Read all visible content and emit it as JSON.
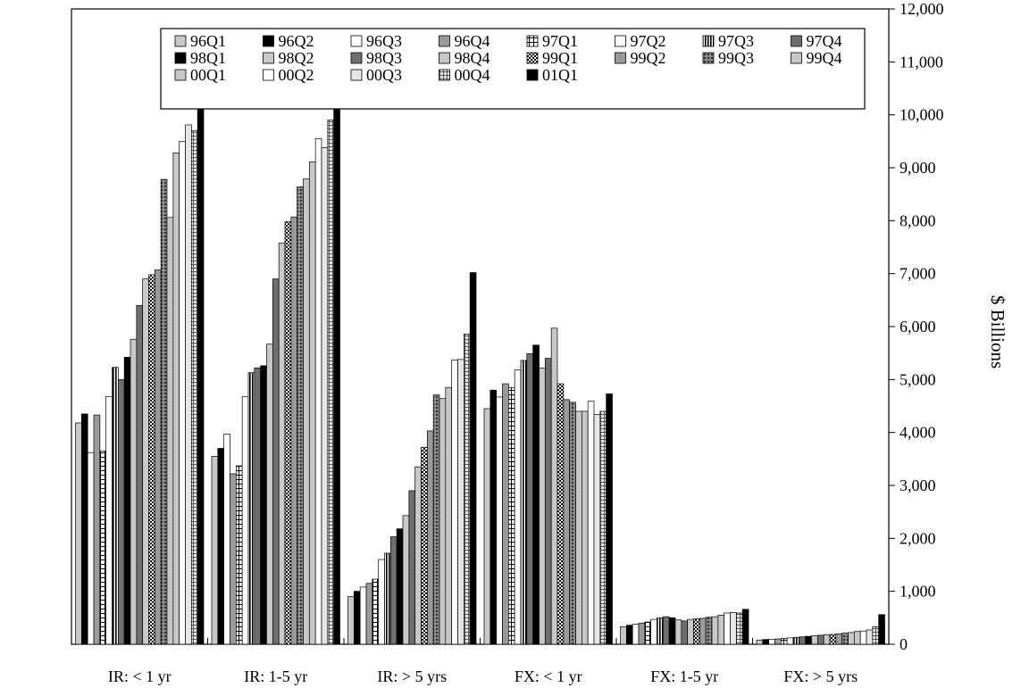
{
  "chart_data": {
    "type": "bar",
    "ylabel": "$ Billions",
    "ylim": [
      0,
      12000
    ],
    "yticks": [
      "0",
      "1,000",
      "2,000",
      "3,000",
      "4,000",
      "5,000",
      "6,000",
      "7,000",
      "8,000",
      "9,000",
      "10,000",
      "11,000",
      "12,000"
    ],
    "y_axis_side": "right",
    "legend_position": "top",
    "grid": false,
    "categories": [
      "IR: < 1 yr",
      "IR: 1-5 yr",
      "IR: > 5 yrs",
      "FX: < 1 yr",
      "FX: 1-5 yr",
      "FX: > 5 yrs"
    ],
    "series": [
      {
        "name": "96Q1",
        "pattern": "light-grey",
        "values": [
          4180,
          3550,
          900,
          4450,
          330,
          80
        ]
      },
      {
        "name": "96Q2",
        "pattern": "black",
        "values": [
          4350,
          3700,
          1000,
          4800,
          360,
          90
        ]
      },
      {
        "name": "96Q3",
        "pattern": "white",
        "values": [
          3620,
          3970,
          1080,
          4670,
          380,
          95
        ]
      },
      {
        "name": "96Q4",
        "pattern": "mid-grey",
        "values": [
          4330,
          3220,
          1150,
          4920,
          400,
          100
        ]
      },
      {
        "name": "97Q1",
        "pattern": "cross",
        "values": [
          3650,
          3370,
          1230,
          4850,
          420,
          110
        ]
      },
      {
        "name": "97Q2",
        "pattern": "white",
        "values": [
          4680,
          4680,
          1600,
          5180,
          470,
          120
        ]
      },
      {
        "name": "97Q3",
        "pattern": "vertical-lines",
        "values": [
          5230,
          5130,
          1720,
          5360,
          500,
          130
        ]
      },
      {
        "name": "97Q4",
        "pattern": "dark-grey",
        "values": [
          5000,
          5220,
          2030,
          5490,
          520,
          140
        ]
      },
      {
        "name": "98Q1",
        "pattern": "black",
        "values": [
          5420,
          5260,
          2180,
          5650,
          500,
          150
        ]
      },
      {
        "name": "98Q2",
        "pattern": "light-grey",
        "values": [
          5760,
          5670,
          2430,
          5220,
          460,
          160
        ]
      },
      {
        "name": "98Q3",
        "pattern": "dark-grey",
        "values": [
          6400,
          6900,
          2900,
          5400,
          440,
          170
        ]
      },
      {
        "name": "98Q4",
        "pattern": "light-grey",
        "values": [
          6900,
          7580,
          3350,
          5970,
          470,
          180
        ]
      },
      {
        "name": "99Q1",
        "pattern": "checker",
        "values": [
          6980,
          7980,
          3720,
          4920,
          480,
          185
        ]
      },
      {
        "name": "99Q2",
        "pattern": "mid-grey",
        "values": [
          7070,
          8070,
          4030,
          4620,
          490,
          195
        ]
      },
      {
        "name": "99Q3",
        "pattern": "dots",
        "values": [
          8780,
          8640,
          4710,
          4570,
          510,
          210
        ]
      },
      {
        "name": "99Q4",
        "pattern": "light-grey",
        "values": [
          8060,
          8790,
          4640,
          4400,
          520,
          220
        ]
      },
      {
        "name": "00Q1",
        "pattern": "light-grey",
        "values": [
          9280,
          9110,
          4850,
          4400,
          550,
          240
        ]
      },
      {
        "name": "00Q2",
        "pattern": "white",
        "values": [
          9500,
          9550,
          5370,
          4590,
          590,
          250
        ]
      },
      {
        "name": "00Q3",
        "pattern": "very-light",
        "values": [
          9810,
          9380,
          5380,
          4340,
          600,
          270
        ]
      },
      {
        "name": "00Q4",
        "pattern": "grid",
        "values": [
          9700,
          9900,
          5860,
          4400,
          590,
          330
        ]
      },
      {
        "name": "01Q1",
        "pattern": "black",
        "values": [
          10520,
          10190,
          7020,
          4730,
          660,
          560
        ]
      }
    ]
  }
}
